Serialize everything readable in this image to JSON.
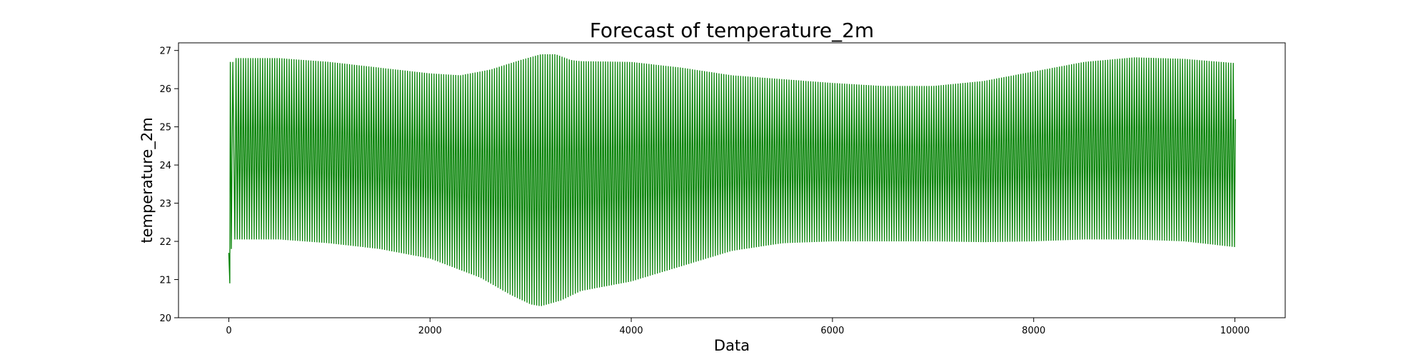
{
  "chart_data": {
    "type": "line",
    "title": "Forecast of temperature_2m",
    "xlabel": "Data",
    "ylabel": "temperature_2m",
    "xlim": [
      -500,
      10500
    ],
    "ylim": [
      20,
      27.2
    ],
    "x_ticks": [
      0,
      2000,
      4000,
      6000,
      8000,
      10000
    ],
    "x_tick_labels": [
      "0",
      "2000",
      "4000",
      "6000",
      "8000",
      "10000"
    ],
    "y_ticks": [
      20,
      21,
      22,
      23,
      24,
      25,
      26,
      27
    ],
    "y_tick_labels": [
      "20",
      "21",
      "22",
      "23",
      "24",
      "25",
      "26",
      "27"
    ],
    "grid": false,
    "legend": "none",
    "series": [
      {
        "color": "#008000",
        "period": 24,
        "start": {
          "x": [
            0,
            10,
            15,
            25,
            40,
            60
          ],
          "y": [
            21.7,
            20.9,
            26.7,
            21.8,
            26.7,
            22.05
          ]
        },
        "upper_envelope": {
          "x": [
            100,
            500,
            1000,
            1500,
            2000,
            2300,
            2600,
            2900,
            3100,
            3250,
            3400,
            3500,
            4000,
            4500,
            5000,
            5500,
            6000,
            6500,
            7000,
            7500,
            8000,
            8500,
            9000,
            9500,
            10000
          ],
          "y": [
            26.8,
            26.8,
            26.7,
            26.55,
            26.4,
            26.35,
            26.5,
            26.75,
            26.9,
            26.9,
            26.75,
            26.72,
            26.7,
            26.55,
            26.35,
            26.25,
            26.15,
            26.07,
            26.07,
            26.2,
            26.45,
            26.7,
            26.82,
            26.78,
            26.67
          ]
        },
        "lower_envelope": {
          "x": [
            100,
            500,
            1000,
            1500,
            2000,
            2500,
            2800,
            3000,
            3100,
            3300,
            3500,
            4000,
            4500,
            5000,
            5500,
            6000,
            6500,
            7000,
            7500,
            8000,
            8500,
            9000,
            9500,
            10000
          ],
          "y": [
            22.05,
            22.05,
            21.95,
            21.8,
            21.55,
            21.05,
            20.6,
            20.35,
            20.3,
            20.45,
            20.7,
            20.95,
            21.35,
            21.75,
            21.95,
            22.0,
            22.0,
            22.0,
            21.98,
            22.0,
            22.05,
            22.05,
            22.0,
            21.85
          ]
        },
        "end": {
          "x": 10005,
          "y": 25.2
        }
      }
    ]
  }
}
